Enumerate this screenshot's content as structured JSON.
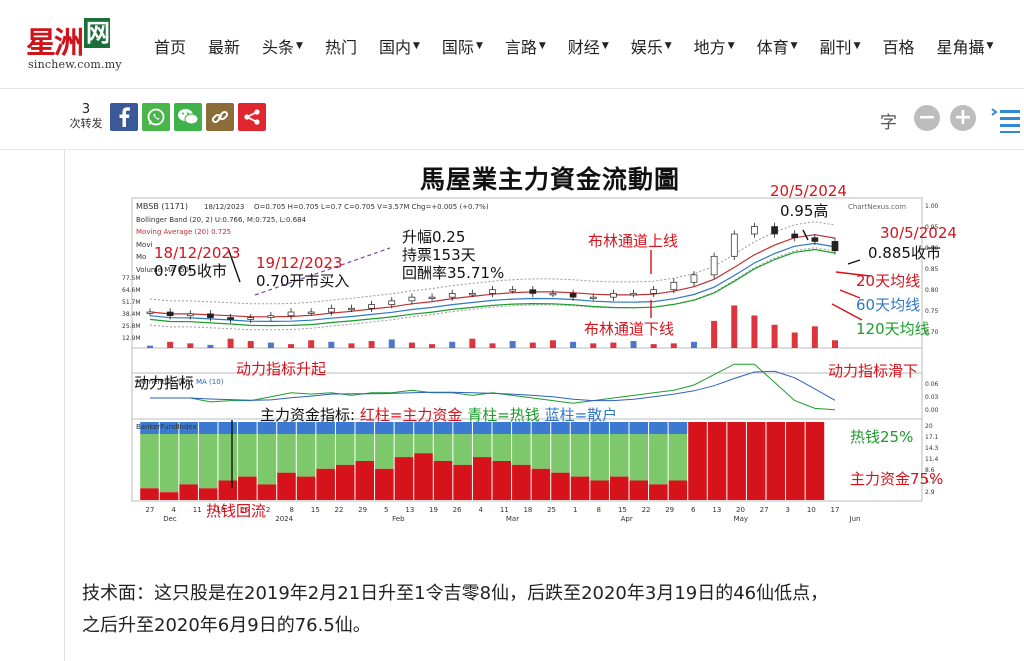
{
  "header": {
    "logo_cn": "星洲",
    "logo_box": "网",
    "logo_en": "sinchew.com.my",
    "nav": [
      {
        "label": "首页",
        "caret": false
      },
      {
        "label": "最新",
        "caret": false
      },
      {
        "label": "头条",
        "caret": true
      },
      {
        "label": "热门",
        "caret": false
      },
      {
        "label": "国内",
        "caret": true
      },
      {
        "label": "国际",
        "caret": true
      },
      {
        "label": "言路",
        "caret": true
      },
      {
        "label": "财经",
        "caret": true
      },
      {
        "label": "娱乐",
        "caret": true
      },
      {
        "label": "地方",
        "caret": true
      },
      {
        "label": "体育",
        "caret": true
      },
      {
        "label": "副刊",
        "caret": true
      },
      {
        "label": "百格",
        "caret": false
      },
      {
        "label": "星角攝",
        "caret": true
      }
    ]
  },
  "share": {
    "count": "3",
    "count_label": "次转发",
    "font_label": "字",
    "minus": "−",
    "plus": "+",
    "colors": {
      "facebook": "#3b5998",
      "whatsapp": "#4ab54b",
      "wechat": "#3eb34a",
      "link": "#8c6d3a",
      "share": "#e0272f"
    }
  },
  "chart_header": {
    "title": "馬屋業主力資金流動圖",
    "ticker": "MBSB (1171)",
    "date": "18/12/2023",
    "ohlc": "O=0.705    H=0.705    L=0.7    C=0.705   V=3.57M   Chg=+0.005 (+0.7%)",
    "bollinger": "Bollinger Band (20, 2)  U:0.766,  M:0.725,  L:0.684",
    "ma20": "Moving Average (20) 0.725",
    "mov": "Movi",
    "mo": "Mo",
    "volume_ma": "Volume MA (50)",
    "momentum_label": "Momentum (10)",
    "momentum_ma": "MA (10)",
    "banker_label": "BankerFundIndex",
    "watermark": "ChartNexus.com",
    "vol_ticks": [
      "77.5M",
      "64.6M",
      "51.7M",
      "38.4M",
      "25.8M",
      "12.9M"
    ],
    "price_ticks": [
      "1.00",
      "0.95",
      "0.90",
      "0.85",
      "0.80",
      "0.75",
      "0.70"
    ],
    "mom_ticks": [
      "0.06",
      "0.03",
      "0.00"
    ],
    "banker_ticks": [
      "20",
      "17.1",
      "14.3",
      "11.4",
      "8.6",
      "5.7",
      "2.9"
    ]
  },
  "chart_data": {
    "type": "candlestick",
    "title": "馬屋業主力資金流動圖",
    "x_ticks": [
      "27",
      "4",
      "11",
      "18",
      "26",
      "2",
      "8",
      "15",
      "22",
      "29",
      "5",
      "13",
      "19",
      "26",
      "4",
      "11",
      "18",
      "25",
      "1",
      "8",
      "15",
      "22",
      "29",
      "6",
      "13",
      "20",
      "27",
      "3",
      "10",
      "17"
    ],
    "month_labels": [
      "Dec",
      "2024",
      "Feb",
      "Mar",
      "Apr",
      "May",
      "Jun"
    ],
    "price_close_approx": [
      0.72,
      0.71,
      0.715,
      0.705,
      0.7,
      0.705,
      0.71,
      0.72,
      0.72,
      0.73,
      0.73,
      0.74,
      0.75,
      0.76,
      0.76,
      0.77,
      0.77,
      0.78,
      0.78,
      0.77,
      0.77,
      0.76,
      0.76,
      0.77,
      0.77,
      0.78,
      0.8,
      0.82,
      0.87,
      0.93,
      0.95,
      0.93,
      0.92,
      0.91,
      0.885
    ],
    "volume_approx_M": [
      3,
      8,
      6,
      4,
      12,
      9,
      7,
      5,
      10,
      8,
      6,
      9,
      11,
      7,
      5,
      8,
      12,
      6,
      9,
      7,
      10,
      8,
      6,
      7,
      9,
      5,
      6,
      8,
      35,
      55,
      42,
      30,
      20,
      28,
      10
    ],
    "banker_red_approx": [
      3,
      2,
      4,
      3,
      5,
      6,
      4,
      7,
      6,
      8,
      9,
      10,
      8,
      11,
      12,
      10,
      9,
      11,
      10,
      9,
      8,
      7,
      6,
      5,
      6,
      5,
      4,
      5,
      20,
      20,
      20,
      20,
      20,
      20,
      20
    ],
    "ylim_price": [
      0.65,
      1.0
    ],
    "ylim_volume_M": [
      0,
      77.5
    ],
    "ylim_banker": [
      0,
      20
    ]
  },
  "annotations": {
    "a1_date": "18/12/2023",
    "a1_text": "0.705收市",
    "a2_date": "19/12/2023",
    "a2_text": "0.70开市买入",
    "a3_l1": "升幅0.25",
    "a3_l2": "持票153天",
    "a3_l3": "回酬率35.71%",
    "boll_up": "布林通道上线",
    "boll_down": "布林通道下线",
    "peak_date": "20/5/2024",
    "peak_text": "0.95高",
    "last_date": "30/5/2024",
    "last_text": "0.885收市",
    "ma20": "20天均线",
    "ma60": "60天均线",
    "ma120": "120天均线",
    "momentum_title": "动力指标",
    "momentum_rise": "动力指标升起",
    "momentum_slide": "动力指标滑下",
    "legend_prefix": "主力资金指标:",
    "legend_red": "红柱=主力资金",
    "legend_green": "青柱=热钱",
    "legend_blue": "蓝柱=散户",
    "hot_pct": "热钱25%",
    "main_pct": "主力资金75%",
    "backflow": "热钱回流"
  },
  "article": {
    "line1": "技术面：这只股是在2019年2月21日升至1令吉零8仙，后跌至2020年3月19日的46仙低点，",
    "line2": "之后升至2020年6月9日的76.5仙。"
  }
}
